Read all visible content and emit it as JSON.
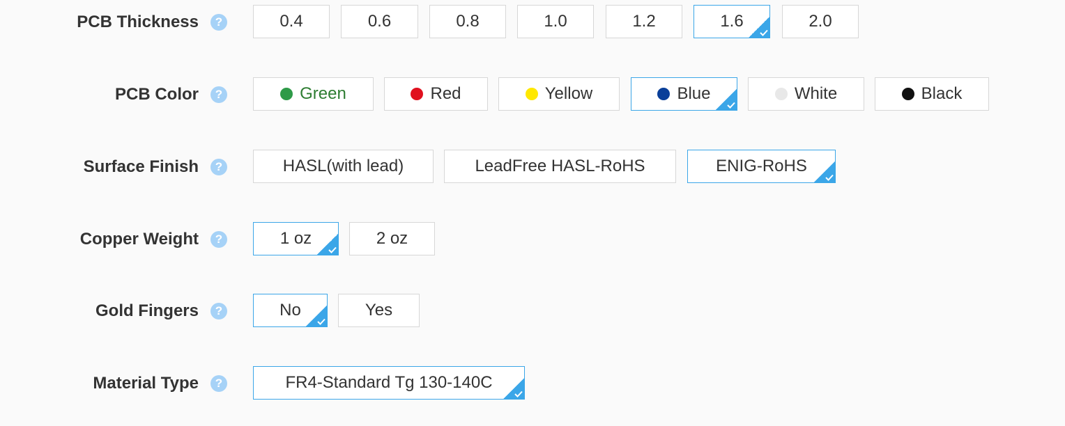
{
  "help_icon_glyph": "?",
  "thickness": {
    "label": "PCB Thickness",
    "options": [
      "0.4",
      "0.6",
      "0.8",
      "1.0",
      "1.2",
      "1.6",
      "2.0"
    ],
    "selected": "1.6"
  },
  "color": {
    "label": "PCB Color",
    "options": [
      {
        "label": "Green",
        "dot": "#2e9a48",
        "text_color": "#2e7d32"
      },
      {
        "label": "Red",
        "dot": "#e0101e",
        "text_color": "#333333"
      },
      {
        "label": "Yellow",
        "dot": "#ffe800",
        "text_color": "#333333"
      },
      {
        "label": "Blue",
        "dot": "#0a3f99",
        "text_color": "#333333"
      },
      {
        "label": "White",
        "dot": "#e8e8e8",
        "text_color": "#333333"
      },
      {
        "label": "Black",
        "dot": "#111111",
        "text_color": "#333333"
      }
    ],
    "selected": "Blue"
  },
  "surface": {
    "label": "Surface Finish",
    "options": [
      "HASL(with lead)",
      "LeadFree HASL-RoHS",
      "ENIG-RoHS"
    ],
    "selected": "ENIG-RoHS"
  },
  "copper": {
    "label": "Copper Weight",
    "options": [
      "1 oz",
      "2 oz"
    ],
    "selected": "1 oz"
  },
  "gold": {
    "label": "Gold Fingers",
    "options": [
      "No",
      "Yes"
    ],
    "selected": "No"
  },
  "material": {
    "label": "Material Type",
    "options": [
      "FR4-Standard Tg 130-140C"
    ],
    "selected": "FR4-Standard Tg 130-140C"
  },
  "accent_color": "#3ba6e8"
}
